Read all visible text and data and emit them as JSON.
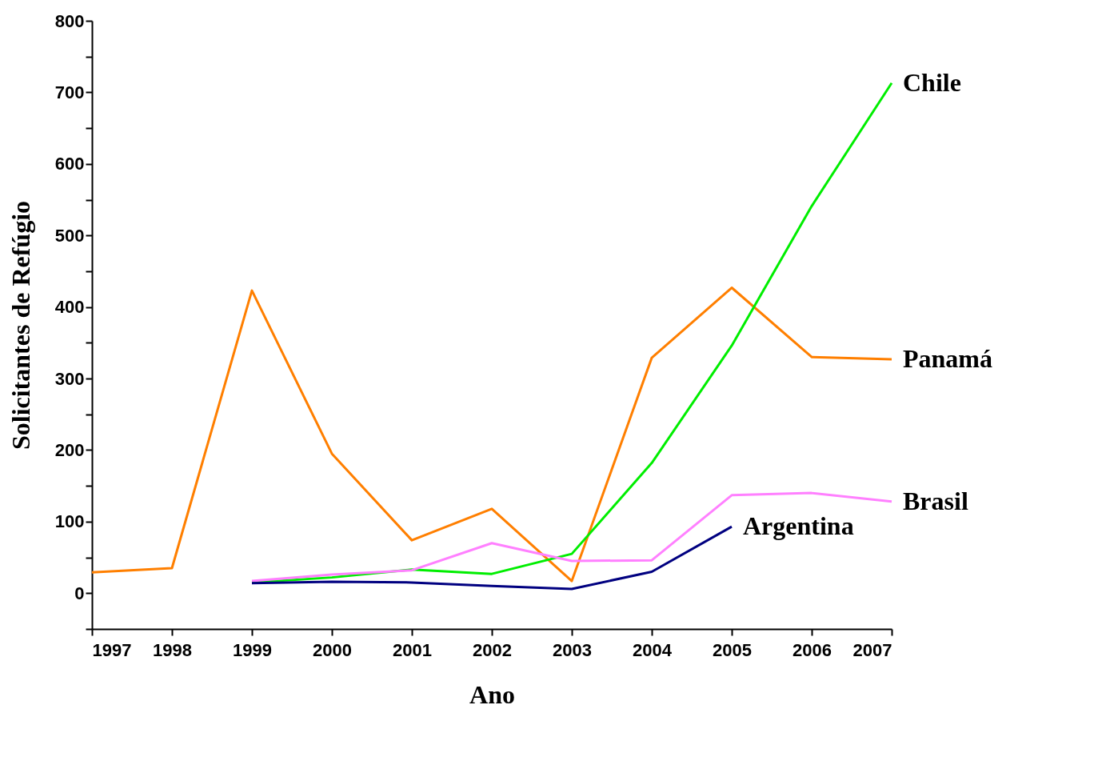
{
  "chart_data": {
    "type": "line",
    "xlabel": "Ano",
    "ylabel": "Solicitantes de Refúgio",
    "xlim": [
      1997,
      2007
    ],
    "xticks": [
      1997,
      1998,
      1999,
      2000,
      2001,
      2002,
      2003,
      2004,
      2005,
      2006,
      2007
    ],
    "ylim": [
      -50,
      800
    ],
    "yticks": [
      {
        "value": -50,
        "label": null
      },
      0,
      {
        "value": 50,
        "label": null
      },
      100,
      {
        "value": 150,
        "label": null
      },
      200,
      {
        "value": 250,
        "label": null
      },
      300,
      {
        "value": 350,
        "label": null
      },
      400,
      {
        "value": 450,
        "label": null
      },
      500,
      {
        "value": 550,
        "label": null
      },
      600,
      {
        "value": 650,
        "label": null
      },
      700,
      {
        "value": 750,
        "label": null
      },
      800
    ],
    "grid": false,
    "marker": "none",
    "line_style": "solid",
    "series": [
      {
        "name": "Panamá",
        "color": "#ff7f00",
        "x": [
          1997,
          1998,
          1999,
          2000,
          2001,
          2002,
          2003,
          2004,
          2005,
          2006,
          2007
        ],
        "values": [
          29,
          35,
          423,
          195,
          74,
          118,
          17,
          329,
          427,
          330,
          327
        ]
      },
      {
        "name": "Chile",
        "color": "#00ee00",
        "x": [
          1999,
          2000,
          2001,
          2002,
          2003,
          2004,
          2005,
          2006,
          2007
        ],
        "values": [
          15,
          22,
          33,
          27,
          55,
          182,
          346,
          541,
          713
        ]
      },
      {
        "name": "Brasil",
        "color": "#ff80ff",
        "x": [
          1999,
          2000,
          2001,
          2002,
          2003,
          2004,
          2005,
          2006,
          2007
        ],
        "values": [
          17,
          26,
          32,
          70,
          45,
          46,
          137,
          140,
          128
        ]
      },
      {
        "name": "Argentina",
        "color": "#000080",
        "x": [
          1999,
          2000,
          2001,
          2002,
          2003,
          2004,
          2005
        ],
        "values": [
          14,
          16,
          15,
          10,
          6,
          30,
          93
        ]
      }
    ]
  }
}
